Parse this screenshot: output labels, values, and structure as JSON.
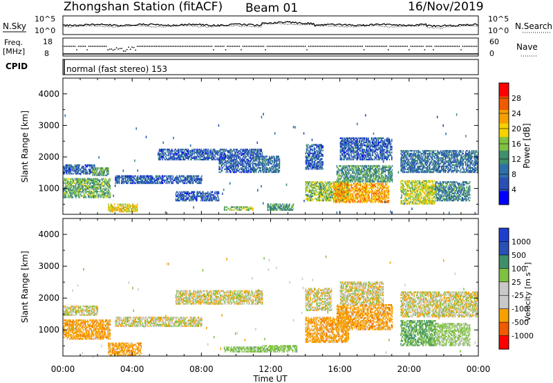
{
  "header": {
    "station": "Zhongshan Station (fitACF)",
    "beam": "Beam 01",
    "date": "16/Nov/2019"
  },
  "noise_panel": {
    "left_label": "N.Sky",
    "right_label": "N.Search",
    "left_ticks": [
      "10^5",
      "10^0"
    ],
    "right_ticks": [
      "10^5",
      "10^0"
    ]
  },
  "freq_panel": {
    "left_label_1": "Freq.",
    "left_label_2": "[MHz]",
    "left_ticks": [
      "18",
      "8"
    ],
    "right_label": "Nave",
    "right_ticks": [
      "60",
      "0"
    ]
  },
  "cpid": {
    "label": "CPID",
    "mode": "normal (fast stereo) 153"
  },
  "time_axis": {
    "label": "Time UT",
    "ticks": [
      "00:00",
      "04:00",
      "08:00",
      "12:00",
      "16:00",
      "20:00",
      "00:00"
    ]
  },
  "power_panel": {
    "ylabel": "Slant Range [km]",
    "yticks": [
      "4000",
      "3000",
      "2000",
      "1000"
    ],
    "colorbar_label": "Power [dB]",
    "colorbar_ticks": [
      "28",
      "24",
      "20",
      "16",
      "12",
      "8",
      "4"
    ]
  },
  "velocity_panel": {
    "ylabel": "Slant Range [km]",
    "yticks": [
      "4000",
      "3000",
      "2000",
      "1000"
    ],
    "colorbar_label": "Velocity [m s⁻¹]",
    "colorbar_ticks": [
      "1000",
      "500",
      "100",
      "25",
      "-25",
      "-100",
      "-500",
      "-1000"
    ]
  },
  "chart_data": [
    {
      "type": "heatmap",
      "panel": "power",
      "x_unit": "hours UT",
      "xlim": [
        0,
        24
      ],
      "ylim": [
        180,
        4500
      ],
      "colorbar": {
        "levels": [
          0,
          4,
          8,
          12,
          16,
          20,
          24,
          28,
          32
        ],
        "colors": [
          "#0000ff",
          "#2a4fb5",
          "#2f6fa8",
          "#3f8f6a",
          "#7fc241",
          "#f5d200",
          "#f7a000",
          "#f05a00",
          "#ff0000"
        ]
      },
      "regions": [
        {
          "t": [
            0.0,
            1.8
          ],
          "r": [
            1450,
            1750
          ],
          "v": 8
        },
        {
          "t": [
            0.0,
            2.7
          ],
          "r": [
            700,
            1300
          ],
          "v": 16
        },
        {
          "t": [
            1.7,
            2.6
          ],
          "r": [
            1400,
            1650
          ],
          "v": 16
        },
        {
          "t": [
            2.6,
            4.3
          ],
          "r": [
            250,
            500
          ],
          "v": 22
        },
        {
          "t": [
            3.0,
            8.0
          ],
          "r": [
            1150,
            1400
          ],
          "v": 8
        },
        {
          "t": [
            6.5,
            9.0
          ],
          "r": [
            600,
            900
          ],
          "v": 8
        },
        {
          "t": [
            5.5,
            11.5
          ],
          "r": [
            1900,
            2250
          ],
          "v": 8
        },
        {
          "t": [
            9.0,
            11.0
          ],
          "r": [
            1500,
            1900
          ],
          "v": 8
        },
        {
          "t": [
            9.3,
            11.0
          ],
          "r": [
            300,
            430
          ],
          "v": 18
        },
        {
          "t": [
            11.0,
            12.5
          ],
          "r": [
            1500,
            2000
          ],
          "v": 10
        },
        {
          "t": [
            11.8,
            13.3
          ],
          "r": [
            300,
            500
          ],
          "v": 14
        },
        {
          "t": [
            14.0,
            15.0
          ],
          "r": [
            1600,
            2400
          ],
          "v": 8
        },
        {
          "t": [
            14.0,
            16.5
          ],
          "r": [
            600,
            1200
          ],
          "v": 18
        },
        {
          "t": [
            15.6,
            18.8
          ],
          "r": [
            550,
            1150
          ],
          "v": 26
        },
        {
          "t": [
            15.8,
            19.0
          ],
          "r": [
            1200,
            1700
          ],
          "v": 14
        },
        {
          "t": [
            16.0,
            19.0
          ],
          "r": [
            1900,
            2600
          ],
          "v": 8
        },
        {
          "t": [
            19.5,
            24.0
          ],
          "r": [
            1500,
            2200
          ],
          "v": 10
        },
        {
          "t": [
            19.5,
            21.5
          ],
          "r": [
            500,
            1250
          ],
          "v": 20
        },
        {
          "t": [
            21.5,
            23.5
          ],
          "r": [
            600,
            1200
          ],
          "v": 12
        }
      ]
    },
    {
      "type": "heatmap",
      "panel": "velocity",
      "x_unit": "hours UT",
      "xlim": [
        0,
        24
      ],
      "ylim": [
        180,
        4500
      ],
      "colorbar": {
        "levels": [
          "-1000",
          "-500",
          "-100",
          "-25",
          "25",
          "100",
          "500",
          "1000"
        ],
        "colors": [
          "#ff0000",
          "#f05a00",
          "#f7a000",
          "#c9c9c9",
          "#c9c9c9",
          "#7fc241",
          "#3f8f6a",
          "#2a4fb5",
          "#1f3fcf"
        ]
      },
      "regions": [
        {
          "t": [
            0.0,
            2.0
          ],
          "r": [
            1450,
            1750
          ],
          "v": 0
        },
        {
          "t": [
            0.0,
            2.7
          ],
          "r": [
            700,
            1300
          ],
          "v": -300
        },
        {
          "t": [
            2.6,
            4.5
          ],
          "r": [
            200,
            600
          ],
          "v": -300
        },
        {
          "t": [
            3.0,
            8.0
          ],
          "r": [
            1100,
            1400
          ],
          "v": 0
        },
        {
          "t": [
            6.5,
            11.5
          ],
          "r": [
            1800,
            2250
          ],
          "v": 0
        },
        {
          "t": [
            9.3,
            11.5
          ],
          "r": [
            300,
            450
          ],
          "v": 300
        },
        {
          "t": [
            11.5,
            13.5
          ],
          "r": [
            300,
            500
          ],
          "v": 300
        },
        {
          "t": [
            14.0,
            16.5
          ],
          "r": [
            600,
            1400
          ],
          "v": -300
        },
        {
          "t": [
            14.0,
            15.5
          ],
          "r": [
            1600,
            2300
          ],
          "v": 0
        },
        {
          "t": [
            15.8,
            19.0
          ],
          "r": [
            1000,
            1800
          ],
          "v": -300
        },
        {
          "t": [
            16.0,
            18.5
          ],
          "r": [
            1800,
            2500
          ],
          "v": 0
        },
        {
          "t": [
            19.5,
            24.0
          ],
          "r": [
            1400,
            2200
          ],
          "v": 0
        },
        {
          "t": [
            19.5,
            21.5
          ],
          "r": [
            500,
            1300
          ],
          "v": 500
        },
        {
          "t": [
            21.5,
            23.5
          ],
          "r": [
            500,
            1200
          ],
          "v": 200
        }
      ]
    }
  ]
}
